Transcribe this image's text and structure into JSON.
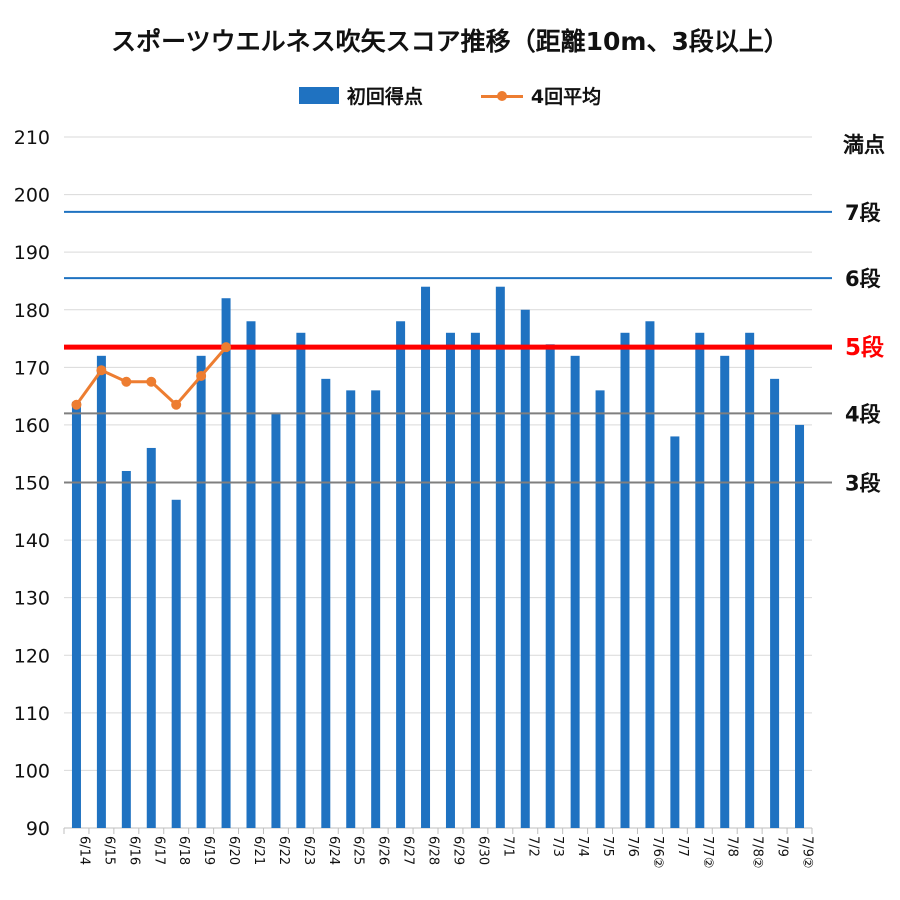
{
  "chart_data": {
    "type": "bar",
    "title": "スポーツウエルネス吹矢スコア推移（距離10m、3段以上）",
    "categories": [
      "6/14",
      "6/15",
      "6/16",
      "6/17",
      "6/18",
      "6/19",
      "6/20",
      "6/21",
      "6/22",
      "6/23",
      "6/24",
      "6/25",
      "6/26",
      "6/27",
      "6/28",
      "6/29",
      "6/30",
      "7/1",
      "7/2",
      "7/3",
      "7/4",
      "7/5",
      "7/6",
      "7/6②",
      "7/7",
      "7/7②",
      "7/8",
      "7/8②",
      "7/9",
      "7/9②"
    ],
    "series": [
      {
        "name": "初回得点",
        "type": "bar",
        "color": "#1f72c1",
        "values": [
          164,
          172,
          152,
          156,
          147,
          172,
          182,
          178,
          162,
          176,
          168,
          166,
          166,
          178,
          184,
          176,
          176,
          184,
          180,
          174,
          172,
          166,
          176,
          178,
          158,
          176,
          172,
          176,
          168,
          160
        ]
      },
      {
        "name": "4回平均",
        "type": "line",
        "color": "#ed7d31",
        "values": [
          163.5,
          169.5,
          167.5,
          167.5,
          163.5,
          168.5,
          173.5,
          null,
          null,
          null,
          null,
          null,
          null,
          null,
          null,
          null,
          null,
          null,
          null,
          null,
          null,
          null,
          null,
          null,
          null,
          null,
          null,
          null,
          null,
          null
        ]
      }
    ],
    "ylim": [
      90,
      210
    ],
    "yticks": [
      90,
      100,
      110,
      120,
      130,
      140,
      150,
      160,
      170,
      180,
      190,
      200,
      210
    ],
    "reference_lines": [
      {
        "label": "満点",
        "value": null,
        "color": "#111111"
      },
      {
        "label": "7段",
        "value": 197,
        "color": "#1f72c1"
      },
      {
        "label": "6段",
        "value": 185.5,
        "color": "#1f72c1"
      },
      {
        "label": "5段",
        "value": 173.5,
        "color": "#ff0000"
      },
      {
        "label": "4段",
        "value": 162,
        "color": "#7f7f7f"
      },
      {
        "label": "3段",
        "value": 150,
        "color": "#7f7f7f"
      }
    ],
    "grid": true,
    "legend_position": "top"
  }
}
